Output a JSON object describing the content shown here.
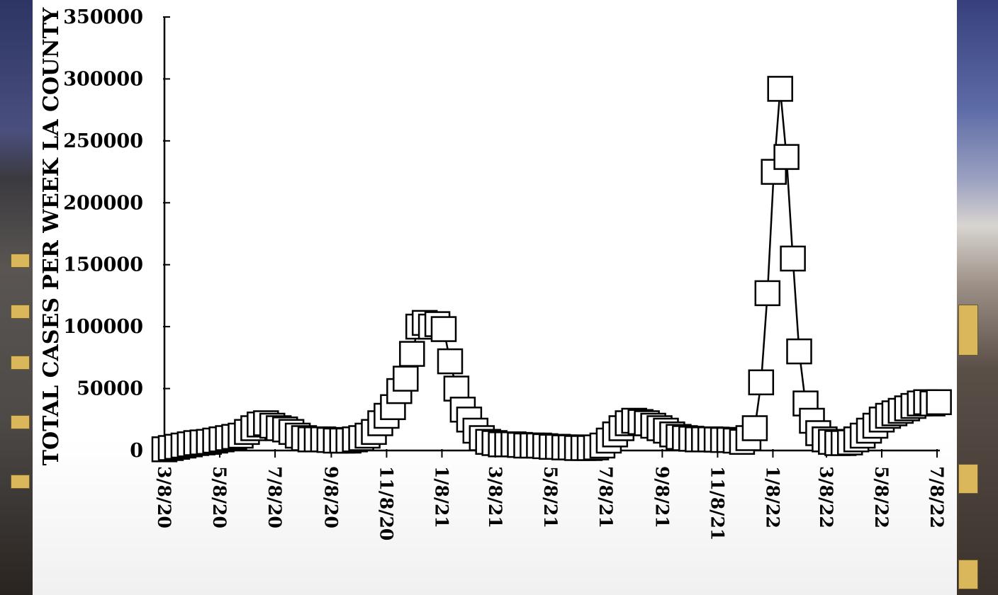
{
  "chart_data": {
    "type": "line",
    "title": "",
    "xlabel": "",
    "ylabel": "TOTAL CASES PER WEEK LA COUNTY",
    "ylim": [
      0,
      350000
    ],
    "y_ticks": [
      "0",
      "50000",
      "100000",
      "150000",
      "200000",
      "250000",
      "300000",
      "350000"
    ],
    "x_ticks": [
      "3/8/20",
      "5/8/20",
      "7/8/20",
      "9/8/20",
      "11/8/20",
      "1/8/21",
      "3/8/21",
      "5/8/21",
      "7/8/21",
      "9/8/21",
      "11/8/21",
      "1/8/22",
      "3/8/22",
      "5/8/22",
      "7/8/22"
    ],
    "marker": "open-square",
    "grid": false,
    "series": [
      {
        "x": [
          "3/8/20",
          "3/15/20",
          "3/22/20",
          "3/29/20",
          "4/5/20",
          "4/12/20",
          "4/19/20",
          "4/26/20",
          "5/3/20",
          "5/10/20",
          "5/17/20",
          "5/24/20",
          "5/31/20",
          "6/7/20",
          "6/14/20",
          "6/21/20",
          "6/28/20",
          "7/5/20",
          "7/12/20",
          "7/19/20",
          "7/26/20",
          "8/2/20",
          "8/9/20",
          "8/16/20",
          "8/23/20",
          "8/30/20",
          "9/6/20",
          "9/13/20",
          "9/20/20",
          "9/27/20",
          "10/4/20",
          "10/11/20",
          "10/18/20",
          "10/25/20",
          "11/1/20",
          "11/8/20",
          "11/15/20",
          "11/22/20",
          "11/29/20",
          "12/6/20",
          "12/13/20",
          "12/20/20",
          "12/27/20",
          "1/3/21",
          "1/10/21",
          "1/17/21",
          "1/24/21",
          "1/31/21",
          "2/7/21",
          "2/14/21",
          "2/21/21",
          "2/28/21",
          "3/7/21",
          "3/14/21",
          "3/21/21",
          "3/28/21",
          "4/4/21",
          "4/11/21",
          "4/18/21",
          "4/25/21",
          "5/2/21",
          "5/9/21",
          "5/16/21",
          "5/23/21",
          "5/30/21",
          "6/6/21",
          "6/13/21",
          "6/20/21",
          "6/27/21",
          "7/4/21",
          "7/11/21",
          "7/18/21",
          "7/25/21",
          "8/1/21",
          "8/8/21",
          "8/15/21",
          "8/22/21",
          "8/29/21",
          "9/5/21",
          "9/12/21",
          "9/19/21",
          "9/26/21",
          "10/3/21",
          "10/10/21",
          "10/17/21",
          "10/24/21",
          "10/31/21",
          "11/7/21",
          "11/14/21",
          "11/21/21",
          "11/28/21",
          "12/5/21",
          "12/12/21",
          "12/19/21",
          "12/26/21",
          "1/2/22",
          "1/9/22",
          "1/16/22",
          "1/23/22",
          "1/30/22",
          "2/6/22",
          "2/13/22",
          "2/20/22",
          "2/27/22",
          "3/6/22",
          "3/13/22",
          "3/20/22",
          "3/27/22",
          "4/3/22",
          "4/10/22",
          "4/17/22",
          "4/24/22",
          "5/1/22",
          "5/8/22",
          "5/15/22",
          "5/22/22",
          "5/29/22",
          "6/5/22",
          "6/12/22",
          "6/19/22",
          "6/26/22",
          "7/3/22",
          "7/10/22"
        ],
        "y": [
          1000,
          2000,
          3000,
          4000,
          5000,
          6000,
          6500,
          7000,
          8000,
          9000,
          10000,
          11000,
          12000,
          15000,
          18000,
          21000,
          22000,
          20000,
          18000,
          17000,
          15000,
          12000,
          10000,
          9000,
          9000,
          9000,
          8500,
          8000,
          8000,
          8000,
          9000,
          10000,
          12000,
          15000,
          22000,
          28000,
          35000,
          48000,
          58000,
          78000,
          100000,
          103000,
          100000,
          102000,
          98000,
          72000,
          50000,
          33000,
          25000,
          16000,
          10000,
          7000,
          6000,
          5000,
          5000,
          5000,
          4500,
          4000,
          4000,
          4000,
          3500,
          3000,
          3000,
          2500,
          2500,
          2000,
          2000,
          2000,
          2500,
          4000,
          8000,
          13000,
          18000,
          22000,
          24000,
          23000,
          22000,
          20000,
          18000,
          16000,
          13000,
          11000,
          10000,
          9500,
          9000,
          9000,
          9000,
          8800,
          8500,
          8500,
          8000,
          7000,
          10000,
          18000,
          55000,
          127000,
          225000,
          292000,
          237000,
          155000,
          80000,
          38000,
          24000,
          14000,
          9000,
          7000,
          6000,
          6000,
          6500,
          9000,
          12000,
          16000,
          20000,
          25000,
          28000,
          30000,
          32000,
          34000,
          36000,
          38000,
          39000,
          38000,
          39000
        ]
      }
    ]
  }
}
